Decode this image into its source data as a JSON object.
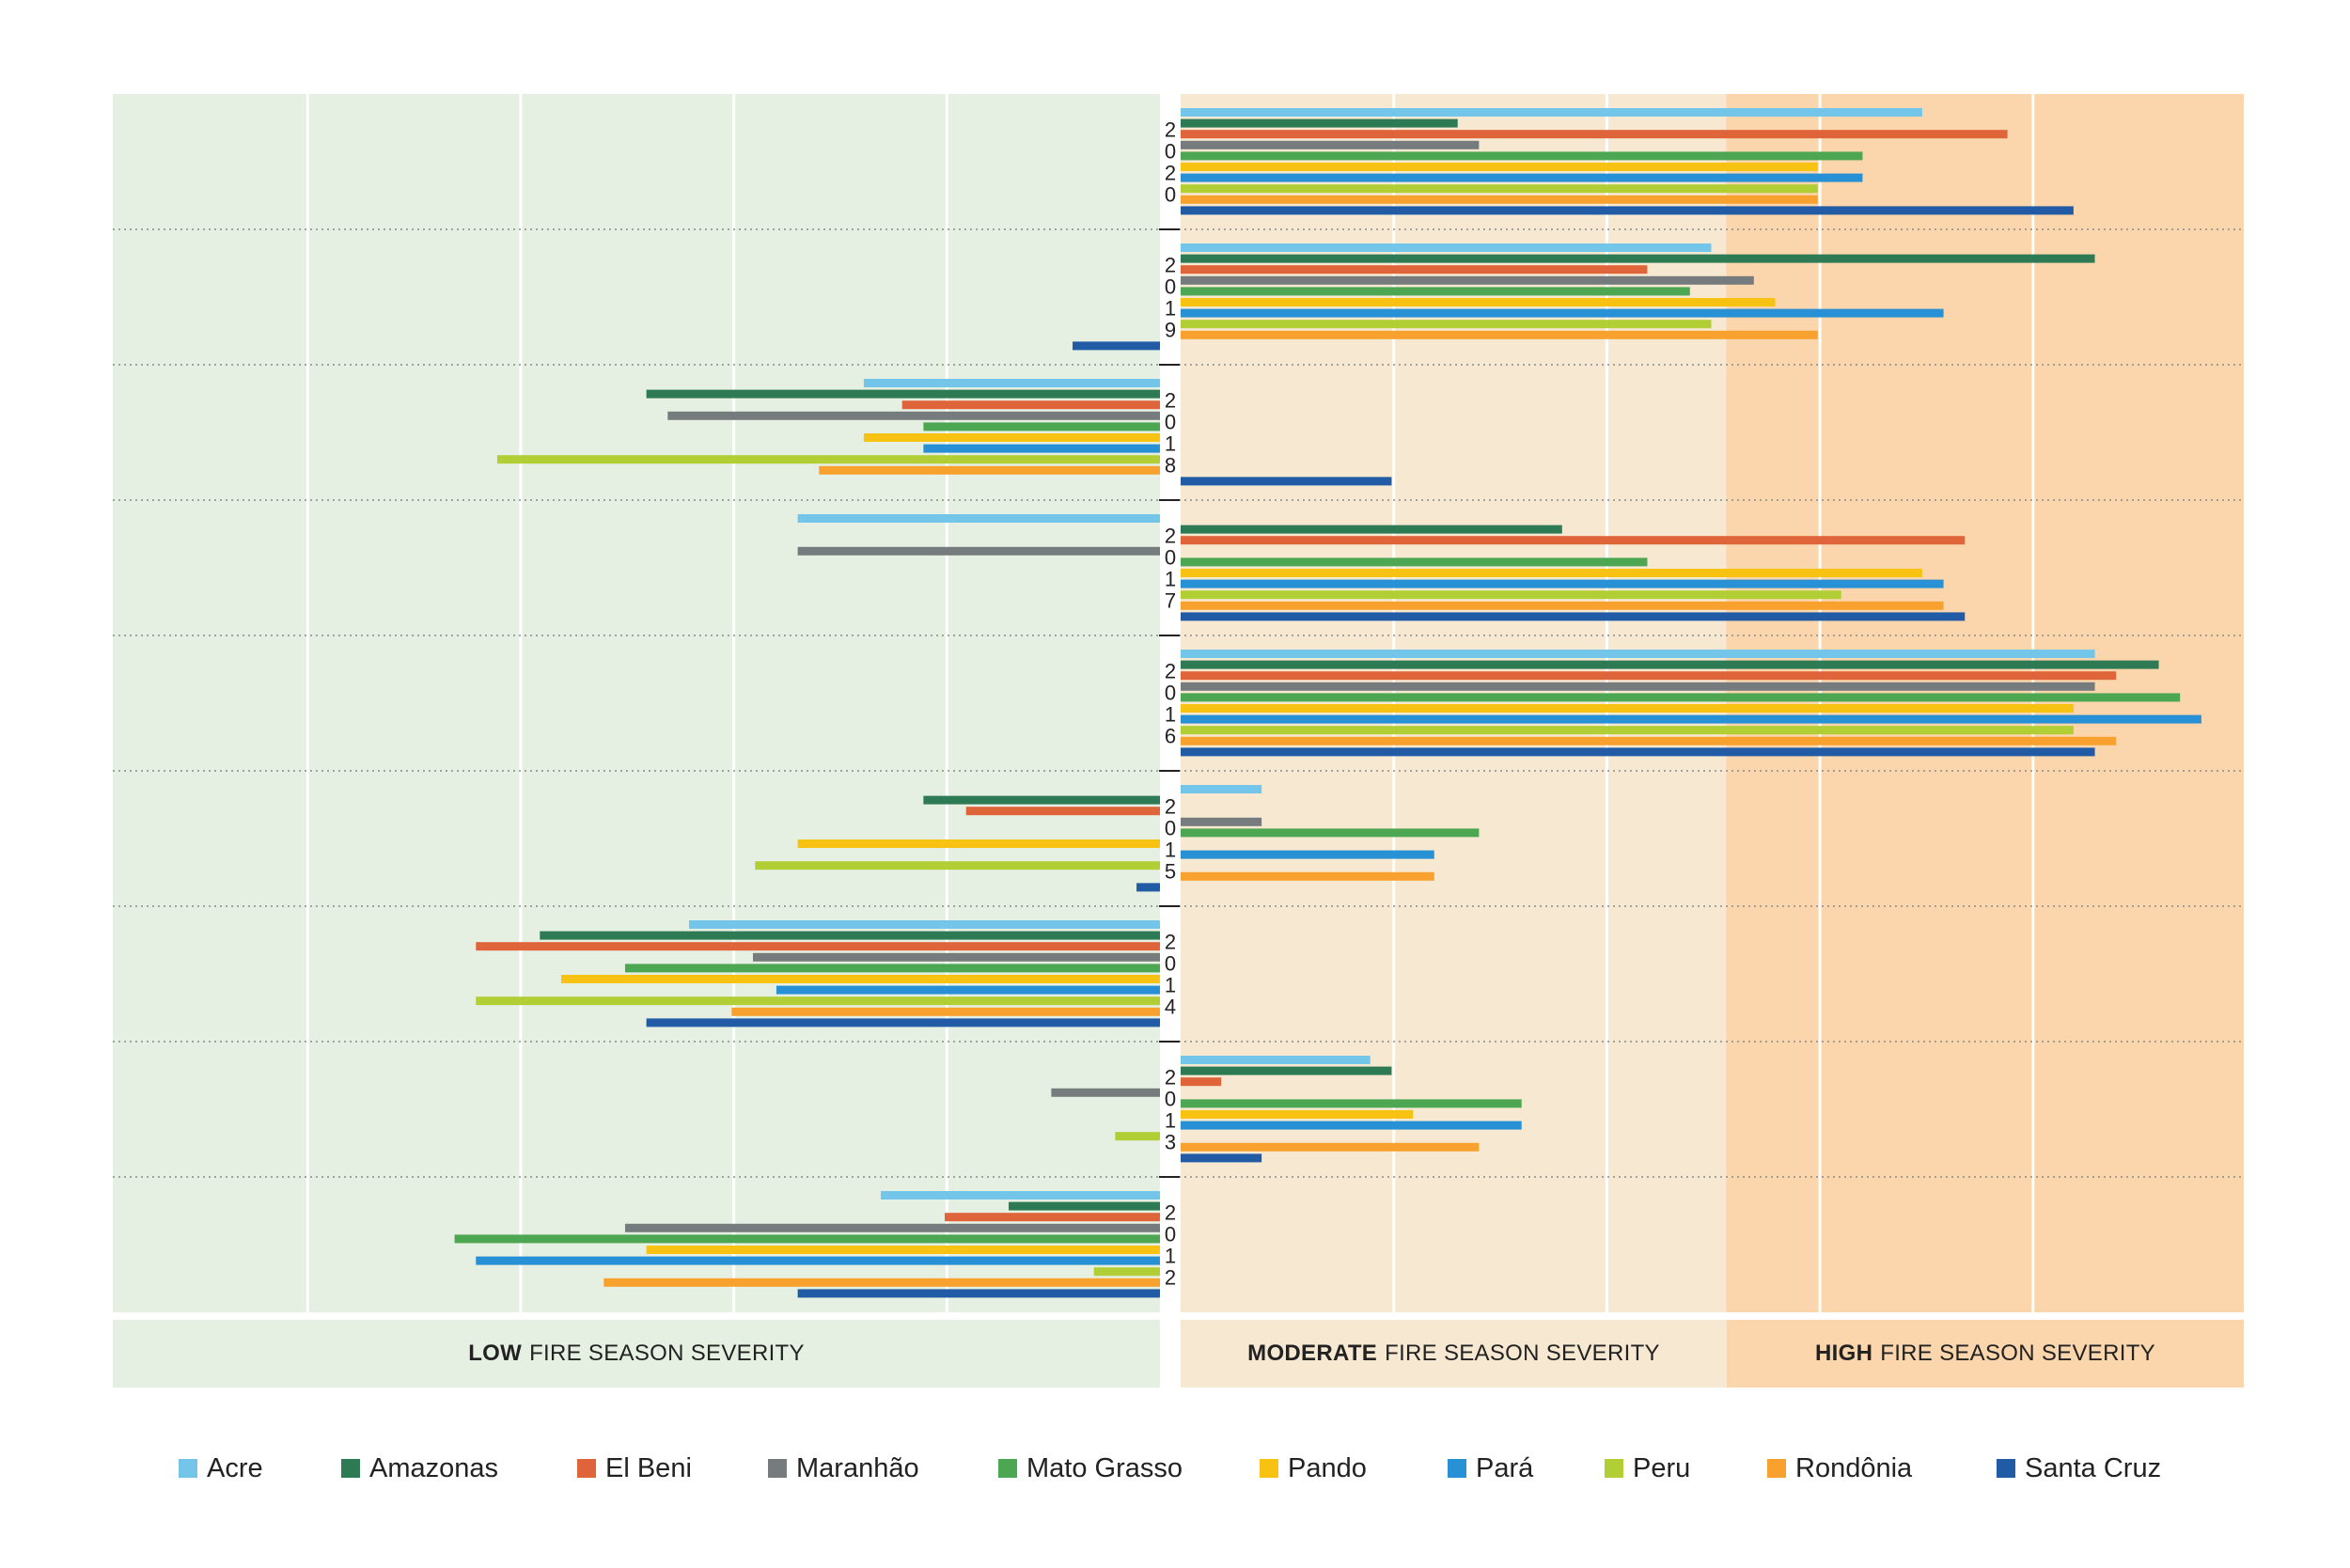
{
  "chart_data": {
    "type": "bar",
    "orientation": "horizontal",
    "categories": [
      "2020",
      "2019",
      "2018",
      "2017",
      "2016",
      "2015",
      "2014",
      "2013",
      "2012"
    ],
    "severity_bands": [
      {
        "id": "low",
        "bold": "LOW",
        "rest": "FIRE SEASON SEVERITY",
        "color": "#e5f0e3",
        "range": [
          -4.9,
          0
        ]
      },
      {
        "id": "mod",
        "bold": "MODERATE",
        "rest": "FIRE SEASON SEVERITY",
        "color": "#f7e8d2",
        "range": [
          0,
          2.56
        ]
      },
      {
        "id": "high",
        "bold": "HIGH",
        "rest": "FIRE SEASON SEVERITY",
        "color": "#fbd5ab",
        "range": [
          2.56,
          5.0
        ]
      }
    ],
    "xlim": [
      -4.9,
      5.0
    ],
    "x_gridlines": [
      -4,
      -3,
      -2,
      -1,
      1,
      2,
      3,
      4
    ],
    "grid": true,
    "legend_position": "bottom",
    "series": [
      {
        "name": "Acre",
        "color": "#73c6ea",
        "values": [
          3.48,
          2.49,
          -1.39,
          -1.7,
          4.29,
          0.38,
          -2.21,
          0.89,
          -1.31
        ]
      },
      {
        "name": "Amazonas",
        "color": "#2e7a55",
        "values": [
          1.3,
          4.29,
          -2.41,
          1.79,
          4.59,
          -1.11,
          -2.91,
          0.99,
          -0.71
        ]
      },
      {
        "name": "El Beni",
        "color": "#e0643a",
        "values": [
          3.88,
          2.19,
          -1.21,
          3.68,
          4.39,
          -0.91,
          -3.21,
          0.19,
          -1.01
        ]
      },
      {
        "name": "Maranhão",
        "color": "#767b7e",
        "values": [
          1.4,
          2.69,
          -2.31,
          -1.7,
          4.29,
          0.38,
          -1.91,
          -0.51,
          -2.51
        ]
      },
      {
        "name": "Mato Grasso",
        "color": "#4da752",
        "values": [
          3.2,
          2.39,
          -1.11,
          2.19,
          4.69,
          1.4,
          -2.51,
          1.6,
          -3.31
        ]
      },
      {
        "name": "Pando",
        "color": "#f7c212",
        "values": [
          2.99,
          2.79,
          -1.39,
          3.48,
          4.19,
          -1.7,
          -2.81,
          1.09,
          -2.41
        ]
      },
      {
        "name": "Pará",
        "color": "#2890d4",
        "values": [
          3.2,
          3.58,
          -1.11,
          3.58,
          4.79,
          1.19,
          -1.8,
          1.6,
          -3.21
        ]
      },
      {
        "name": "Peru",
        "color": "#b1ce35",
        "values": [
          2.99,
          2.49,
          -3.11,
          3.1,
          4.19,
          -1.9,
          -3.21,
          -0.21,
          -0.31
        ]
      },
      {
        "name": "Rondônia",
        "color": "#f9a12e",
        "values": [
          2.99,
          2.99,
          -1.6,
          3.58,
          4.39,
          1.19,
          -2.01,
          1.4,
          -2.61
        ]
      },
      {
        "name": "Santa Cruz",
        "color": "#215ba5",
        "values": [
          4.19,
          -0.41,
          0.99,
          3.68,
          4.29,
          -0.11,
          -2.41,
          0.38,
          -1.7
        ]
      }
    ]
  },
  "legend": {
    "items": [
      {
        "label": "Acre",
        "color": "#73c6ea"
      },
      {
        "label": "Amazonas",
        "color": "#2e7a55"
      },
      {
        "label": "El Beni",
        "color": "#e0643a"
      },
      {
        "label": "Maranhão",
        "color": "#767b7e"
      },
      {
        "label": "Mato Grasso",
        "color": "#4da752"
      },
      {
        "label": "Pando",
        "color": "#f7c212"
      },
      {
        "label": "Pará",
        "color": "#2890d4"
      },
      {
        "label": "Peru",
        "color": "#b1ce35"
      },
      {
        "label": "Rondônia",
        "color": "#f9a12e"
      },
      {
        "label": "Santa Cruz",
        "color": "#215ba5"
      }
    ]
  }
}
